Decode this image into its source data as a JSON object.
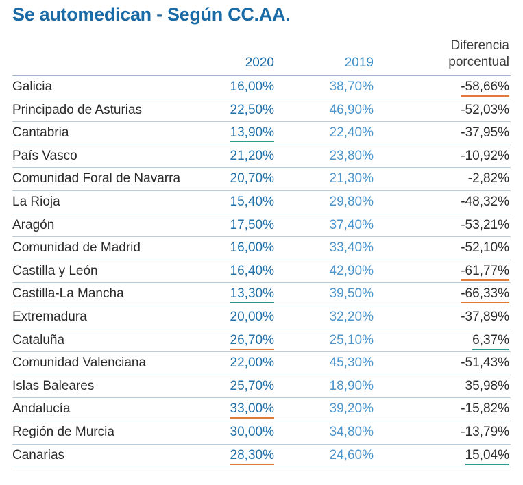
{
  "title": "Se automedican - Según CC.AA.",
  "headers": {
    "y2020": "2020",
    "y2019": "2019",
    "diff_line1": "Diferencia",
    "diff_line2": "porcentual"
  },
  "accent_colors": {
    "title": "#1a6aa6",
    "negative_underline": "#e07b3a",
    "positive_underline": "#2a9a8c"
  },
  "chart_data": {
    "type": "table",
    "title": "Se automedican - Según CC.AA.",
    "columns": [
      "2020",
      "2019",
      "Diferencia porcentual"
    ],
    "rows": [
      {
        "region": "Galicia",
        "y2020": "16,00%",
        "y2019": "38,70%",
        "diff": "-58,66%",
        "mark2020": "",
        "markdiff": "orange"
      },
      {
        "region": "Principado de Asturias",
        "y2020": "22,50%",
        "y2019": "46,90%",
        "diff": "-52,03%",
        "mark2020": "",
        "markdiff": ""
      },
      {
        "region": "Cantabria",
        "y2020": "13,90%",
        "y2019": "22,40%",
        "diff": "-37,95%",
        "mark2020": "teal",
        "markdiff": ""
      },
      {
        "region": "País Vasco",
        "y2020": "21,20%",
        "y2019": "23,80%",
        "diff": "-10,92%",
        "mark2020": "",
        "markdiff": ""
      },
      {
        "region": "Comunidad Foral de Navarra",
        "y2020": "20,70%",
        "y2019": "21,30%",
        "diff": "-2,82%",
        "mark2020": "",
        "markdiff": ""
      },
      {
        "region": "La Rioja",
        "y2020": "15,40%",
        "y2019": "29,80%",
        "diff": "-48,32%",
        "mark2020": "",
        "markdiff": ""
      },
      {
        "region": "Aragón",
        "y2020": "17,50%",
        "y2019": "37,40%",
        "diff": "-53,21%",
        "mark2020": "",
        "markdiff": ""
      },
      {
        "region": "Comunidad de Madrid",
        "y2020": "16,00%",
        "y2019": "33,40%",
        "diff": "-52,10%",
        "mark2020": "",
        "markdiff": ""
      },
      {
        "region": "Castilla y León",
        "y2020": "16,40%",
        "y2019": "42,90%",
        "diff": "-61,77%",
        "mark2020": "",
        "markdiff": "orange"
      },
      {
        "region": "Castilla-La Mancha",
        "y2020": "13,30%",
        "y2019": "39,50%",
        "diff": "-66,33%",
        "mark2020": "teal",
        "markdiff": "orange"
      },
      {
        "region": "Extremadura",
        "y2020": "20,00%",
        "y2019": "32,20%",
        "diff": "-37,89%",
        "mark2020": "",
        "markdiff": ""
      },
      {
        "region": "Cataluña",
        "y2020": "26,70%",
        "y2019": "25,10%",
        "diff": "6,37%",
        "mark2020": "orange",
        "markdiff": "teal"
      },
      {
        "region": "Comunidad Valenciana",
        "y2020": "22,00%",
        "y2019": "45,30%",
        "diff": "-51,43%",
        "mark2020": "",
        "markdiff": ""
      },
      {
        "region": "Islas Baleares",
        "y2020": "25,70%",
        "y2019": "18,90%",
        "diff": "35,98%",
        "mark2020": "",
        "markdiff": ""
      },
      {
        "region": "Andalucía",
        "y2020": "33,00%",
        "y2019": "39,20%",
        "diff": "-15,82%",
        "mark2020": "orange",
        "markdiff": ""
      },
      {
        "region": "Región de Murcia",
        "y2020": "30,00%",
        "y2019": "34,80%",
        "diff": "-13,79%",
        "mark2020": "",
        "markdiff": ""
      },
      {
        "region": "Canarias",
        "y2020": "28,30%",
        "y2019": "24,60%",
        "diff": "15,04%",
        "mark2020": "orange",
        "markdiff": "teal"
      }
    ]
  }
}
